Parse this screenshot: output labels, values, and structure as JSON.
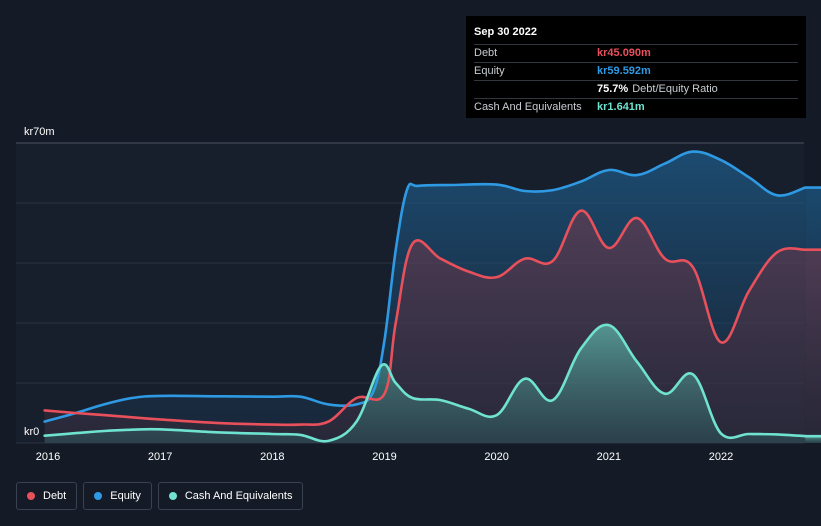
{
  "tooltip": {
    "date": "Sep 30 2022",
    "rows": [
      {
        "label": "Debt",
        "value": "kr45.090m",
        "color": "#e8505b"
      },
      {
        "label": "Equity",
        "value": "kr59.592m",
        "color": "#2e9ae4"
      },
      {
        "label": "",
        "value": "75.7%",
        "extra": "Debt/Equity Ratio",
        "color": "#ffffff"
      },
      {
        "label": "Cash And Equivalents",
        "value": "kr1.641m",
        "color": "#6fe3cf"
      }
    ]
  },
  "legend": [
    {
      "label": "Debt",
      "color": "#e8505b"
    },
    {
      "label": "Equity",
      "color": "#2e9ae4"
    },
    {
      "label": "Cash And Equivalents",
      "color": "#6fe3cf"
    }
  ],
  "chart_data": {
    "type": "area",
    "title": "",
    "xlabel": "",
    "ylabel": "",
    "y_top_label": "kr70m",
    "y_bottom_label": "kr0",
    "ylim": [
      0,
      70
    ],
    "xlim": [
      2015.97,
      2022.75
    ],
    "x_ticks": [
      "2016",
      "2017",
      "2018",
      "2019",
      "2020",
      "2021",
      "2022"
    ],
    "x_tick_values": [
      2016,
      2017,
      2018,
      2019,
      2020,
      2021,
      2022
    ],
    "series": [
      {
        "name": "Equity",
        "color": "#2e9ae4",
        "points": [
          [
            2015.97,
            5.0
          ],
          [
            2016.25,
            7.0
          ],
          [
            2016.5,
            9.0
          ],
          [
            2016.75,
            10.5
          ],
          [
            2017.0,
            11.0
          ],
          [
            2017.5,
            10.9
          ],
          [
            2018.0,
            10.8
          ],
          [
            2018.25,
            10.8
          ],
          [
            2018.5,
            9.0
          ],
          [
            2018.75,
            9.0
          ],
          [
            2018.9,
            12.0
          ],
          [
            2019.0,
            24.0
          ],
          [
            2019.1,
            45.0
          ],
          [
            2019.2,
            59.0
          ],
          [
            2019.3,
            60.0
          ],
          [
            2019.6,
            60.2
          ],
          [
            2020.0,
            60.3
          ],
          [
            2020.25,
            58.8
          ],
          [
            2020.5,
            59.0
          ],
          [
            2020.75,
            61.0
          ],
          [
            2021.0,
            63.7
          ],
          [
            2021.25,
            62.5
          ],
          [
            2021.5,
            65.2
          ],
          [
            2021.75,
            68.0
          ],
          [
            2022.0,
            66.0
          ],
          [
            2022.25,
            62.0
          ],
          [
            2022.5,
            57.8
          ],
          [
            2022.75,
            59.6
          ]
        ]
      },
      {
        "name": "Debt",
        "color": "#e8505b",
        "points": [
          [
            2015.97,
            7.6
          ],
          [
            2016.25,
            7.0
          ],
          [
            2016.5,
            6.5
          ],
          [
            2016.75,
            6.0
          ],
          [
            2017.0,
            5.5
          ],
          [
            2017.5,
            4.7
          ],
          [
            2018.0,
            4.3
          ],
          [
            2018.25,
            4.3
          ],
          [
            2018.5,
            5.0
          ],
          [
            2018.75,
            10.5
          ],
          [
            2019.0,
            11.5
          ],
          [
            2019.1,
            28.0
          ],
          [
            2019.25,
            46.5
          ],
          [
            2019.5,
            43.0
          ],
          [
            2019.75,
            40.0
          ],
          [
            2020.0,
            38.7
          ],
          [
            2020.25,
            43.0
          ],
          [
            2020.5,
            42.5
          ],
          [
            2020.75,
            54.2
          ],
          [
            2021.0,
            45.5
          ],
          [
            2021.25,
            52.5
          ],
          [
            2021.5,
            43.0
          ],
          [
            2021.75,
            41.0
          ],
          [
            2022.0,
            23.5
          ],
          [
            2022.25,
            35.5
          ],
          [
            2022.5,
            44.5
          ],
          [
            2022.75,
            45.1
          ]
        ]
      },
      {
        "name": "Cash And Equivalents",
        "color": "#6fe3cf",
        "points": [
          [
            2015.97,
            1.7
          ],
          [
            2016.25,
            2.3
          ],
          [
            2016.5,
            2.8
          ],
          [
            2016.75,
            3.1
          ],
          [
            2017.0,
            3.2
          ],
          [
            2017.5,
            2.5
          ],
          [
            2018.0,
            2.1
          ],
          [
            2018.25,
            1.9
          ],
          [
            2018.5,
            0.5
          ],
          [
            2018.75,
            5.0
          ],
          [
            2018.97,
            18.0
          ],
          [
            2019.1,
            14.0
          ],
          [
            2019.25,
            10.5
          ],
          [
            2019.5,
            10.0
          ],
          [
            2019.75,
            8.0
          ],
          [
            2020.0,
            6.5
          ],
          [
            2020.25,
            15.0
          ],
          [
            2020.5,
            10.0
          ],
          [
            2020.75,
            22.0
          ],
          [
            2021.0,
            27.5
          ],
          [
            2021.25,
            19.0
          ],
          [
            2021.5,
            11.5
          ],
          [
            2021.75,
            16.0
          ],
          [
            2022.0,
            2.2
          ],
          [
            2022.25,
            2.1
          ],
          [
            2022.5,
            2.0
          ],
          [
            2022.75,
            1.6
          ]
        ]
      }
    ]
  }
}
